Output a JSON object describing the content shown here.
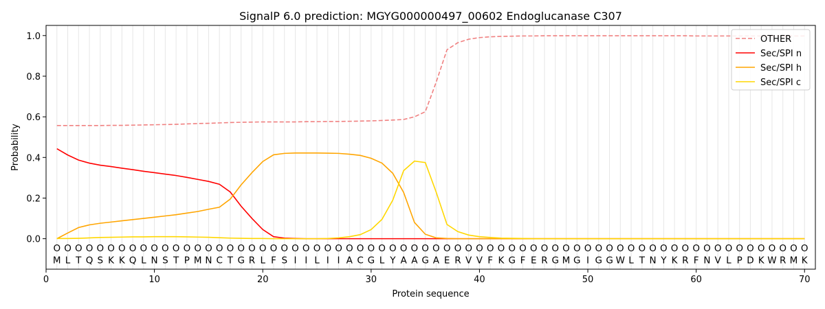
{
  "chart_data": {
    "type": "line",
    "title": "SignalP 6.0 prediction: MGYG000000497_00602 Endoglucanase C307",
    "xlabel": "Protein sequence",
    "ylabel": "Probability",
    "xlim": [
      0,
      71
    ],
    "ylim": [
      -0.15,
      1.05
    ],
    "xticks": [
      0,
      10,
      20,
      30,
      40,
      50,
      60,
      70
    ],
    "yticks": [
      0.0,
      0.2,
      0.4,
      0.6,
      0.8,
      1.0
    ],
    "ytick_labels": [
      "0.0",
      "0.2",
      "0.4",
      "0.6",
      "0.8",
      "1.0"
    ],
    "legend_position": "top-right",
    "grid": "vertical lines at each residue",
    "sequence": [
      "M",
      "L",
      "T",
      "Q",
      "S",
      "K",
      "K",
      "Q",
      "L",
      "N",
      "S",
      "T",
      "P",
      "M",
      "N",
      "C",
      "T",
      "G",
      "R",
      "L",
      "F",
      "S",
      "I",
      "I",
      "L",
      "I",
      "I",
      "A",
      "C",
      "G",
      "L",
      "Y",
      "A",
      "A",
      "G",
      "A",
      "E",
      "R",
      "V",
      "V",
      "F",
      "K",
      "G",
      "F",
      "E",
      "R",
      "G",
      "M",
      "G",
      "I",
      "G",
      "G",
      "W",
      "L",
      "T",
      "N",
      "Y",
      "K",
      "R",
      "F",
      "N",
      "V",
      "L",
      "P",
      "D",
      "K",
      "W",
      "R",
      "M",
      "K"
    ],
    "prediction_labels": [
      "O",
      "O",
      "O",
      "O",
      "O",
      "O",
      "O",
      "O",
      "O",
      "O",
      "O",
      "O",
      "O",
      "O",
      "O",
      "O",
      "O",
      "O",
      "O",
      "O",
      "O",
      "O",
      "O",
      "O",
      "O",
      "O",
      "O",
      "O",
      "O",
      "O",
      "O",
      "O",
      "O",
      "O",
      "O",
      "O",
      "O",
      "O",
      "O",
      "O",
      "O",
      "O",
      "O",
      "O",
      "O",
      "O",
      "O",
      "O",
      "O",
      "O",
      "O",
      "O",
      "O",
      "O",
      "O",
      "O",
      "O",
      "O",
      "O",
      "O",
      "O",
      "O",
      "O",
      "O",
      "O",
      "O",
      "O",
      "O",
      "O",
      "O"
    ],
    "series": [
      {
        "name": "OTHER",
        "color": "#f08080",
        "dash": "dashed",
        "values": [
          0.557,
          0.557,
          0.557,
          0.557,
          0.557,
          0.558,
          0.558,
          0.559,
          0.56,
          0.561,
          0.562,
          0.563,
          0.565,
          0.567,
          0.568,
          0.57,
          0.572,
          0.573,
          0.574,
          0.575,
          0.575,
          0.575,
          0.575,
          0.576,
          0.576,
          0.577,
          0.577,
          0.578,
          0.579,
          0.58,
          0.582,
          0.584,
          0.587,
          0.6,
          0.625,
          0.77,
          0.93,
          0.965,
          0.982,
          0.99,
          0.994,
          0.996,
          0.997,
          0.998,
          0.998,
          0.999,
          0.999,
          0.999,
          0.999,
          0.999,
          0.999,
          0.999,
          0.999,
          0.999,
          0.999,
          0.999,
          0.999,
          0.999,
          0.999,
          0.998,
          0.998,
          0.998,
          0.998,
          0.998,
          0.998,
          0.998,
          0.998,
          0.998,
          0.998,
          0.998
        ]
      },
      {
        "name": "Sec/SPI n",
        "color": "#ff0000",
        "dash": "solid",
        "values": [
          0.443,
          0.412,
          0.387,
          0.372,
          0.362,
          0.355,
          0.347,
          0.34,
          0.332,
          0.325,
          0.318,
          0.311,
          0.302,
          0.292,
          0.282,
          0.268,
          0.23,
          0.16,
          0.1,
          0.045,
          0.01,
          0.003,
          0.001,
          0,
          0,
          0,
          0,
          0,
          0,
          0,
          0,
          0,
          0,
          0,
          0,
          0,
          0,
          0,
          0,
          0,
          0,
          0,
          0,
          0,
          0,
          0,
          0,
          0,
          0,
          0,
          0,
          0,
          0,
          0,
          0,
          0,
          0,
          0,
          0,
          0,
          0,
          0,
          0,
          0,
          0,
          0,
          0,
          0,
          0,
          0
        ]
      },
      {
        "name": "Sec/SPI h",
        "color": "#ffa500",
        "dash": "solid",
        "values": [
          0.0,
          0.028,
          0.055,
          0.068,
          0.076,
          0.082,
          0.088,
          0.094,
          0.1,
          0.106,
          0.112,
          0.118,
          0.126,
          0.134,
          0.145,
          0.155,
          0.195,
          0.265,
          0.325,
          0.38,
          0.413,
          0.42,
          0.422,
          0.422,
          0.422,
          0.421,
          0.42,
          0.416,
          0.41,
          0.396,
          0.372,
          0.322,
          0.228,
          0.08,
          0.022,
          0.004,
          0.001,
          0,
          0,
          0,
          0,
          0,
          0,
          0,
          0,
          0,
          0,
          0,
          0,
          0,
          0,
          0,
          0,
          0,
          0,
          0,
          0,
          0,
          0,
          0,
          0,
          0,
          0,
          0,
          0,
          0,
          0,
          0,
          0,
          0
        ]
      },
      {
        "name": "Sec/SPI c",
        "color": "#ffd700",
        "dash": "solid",
        "values": [
          0.001,
          0.001,
          0.002,
          0.004,
          0.006,
          0.007,
          0.008,
          0.009,
          0.009,
          0.01,
          0.01,
          0.01,
          0.009,
          0.008,
          0.007,
          0.005,
          0.003,
          0.002,
          0.001,
          0.001,
          0.0,
          0.0,
          0.0,
          0.0,
          0.0,
          0.001,
          0.004,
          0.01,
          0.02,
          0.045,
          0.095,
          0.19,
          0.335,
          0.382,
          0.375,
          0.23,
          0.07,
          0.035,
          0.018,
          0.01,
          0.006,
          0.003,
          0.002,
          0.001,
          0,
          0,
          0,
          0,
          0,
          0,
          0,
          0,
          0,
          0,
          0,
          0,
          0,
          0,
          0,
          0,
          0,
          0,
          0,
          0,
          0,
          0,
          0,
          0,
          0,
          0
        ]
      }
    ]
  }
}
